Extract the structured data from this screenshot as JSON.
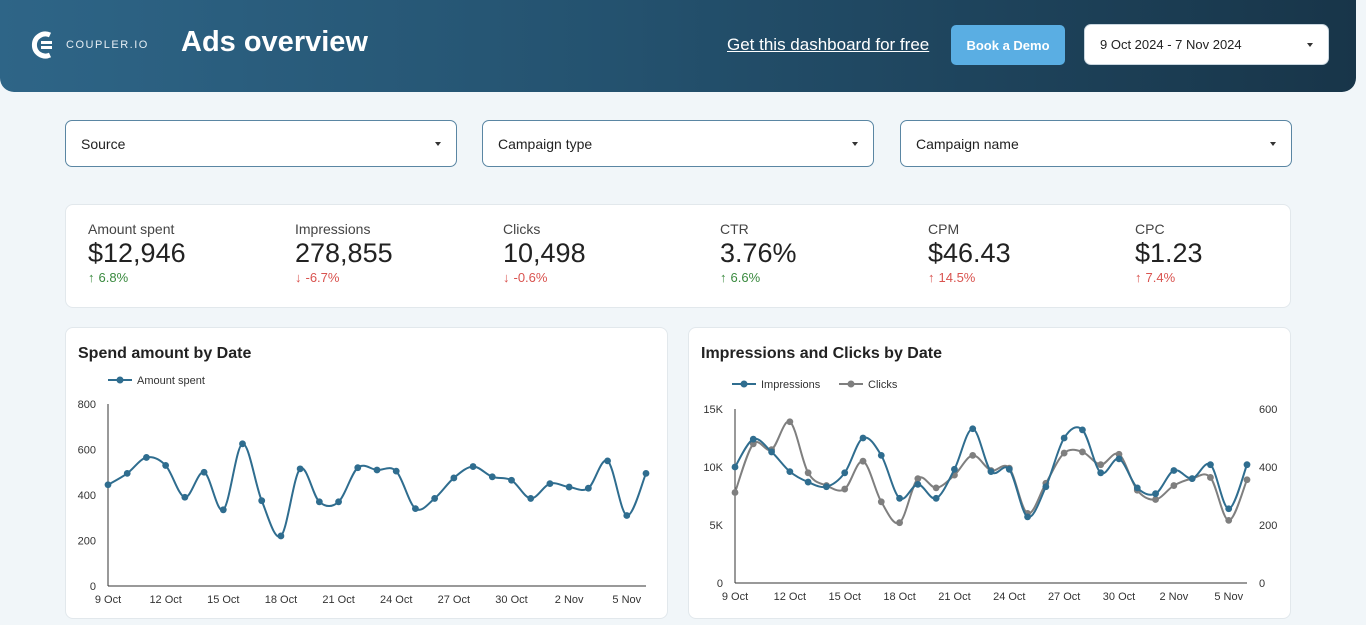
{
  "header": {
    "logo_text": "COUPLER.IO",
    "title": "Ads overview",
    "free_link": "Get this dashboard for free",
    "demo_button": "Book a Demo",
    "date_range": "9 Oct 2024 - 7 Nov 2024"
  },
  "filters": [
    {
      "label": "Source"
    },
    {
      "label": "Campaign type"
    },
    {
      "label": "Campaign name"
    }
  ],
  "kpis": [
    {
      "label": "Amount spent",
      "value": "$12,946",
      "delta": "6.8%",
      "direction": "up",
      "color": "#3a8a3f"
    },
    {
      "label": "Impressions",
      "value": "278,855",
      "delta": "-6.7%",
      "direction": "down",
      "color": "#d9534f"
    },
    {
      "label": "Clicks",
      "value": "10,498",
      "delta": "-0.6%",
      "direction": "down",
      "color": "#d9534f"
    },
    {
      "label": "CTR",
      "value": "3.76%",
      "delta": "6.6%",
      "direction": "up",
      "color": "#3a8a3f"
    },
    {
      "label": "CPM",
      "value": "$46.43",
      "delta": "14.5%",
      "direction": "up",
      "color": "#d9534f"
    },
    {
      "label": "CPC",
      "value": "$1.23",
      "delta": "7.4%",
      "direction": "up",
      "color": "#d9534f"
    }
  ],
  "colors": {
    "series_blue": "#2f6d8f",
    "series_gray": "#7f7f7f",
    "primary_button": "#5aaee3"
  },
  "chart_data": [
    {
      "type": "line",
      "title": "Spend amount by Date",
      "x_tick_labels": [
        "9 Oct",
        "12 Oct",
        "15 Oct",
        "18 Oct",
        "21 Oct",
        "24 Oct",
        "27 Oct",
        "30 Oct",
        "2 Nov",
        "5 Nov"
      ],
      "ylim": [
        0,
        800
      ],
      "y_ticks": [
        0,
        200,
        400,
        600,
        800
      ],
      "legend_position": "top-left",
      "series": [
        {
          "name": "Amount spent",
          "values": [
            445,
            495,
            565,
            530,
            390,
            500,
            335,
            625,
            375,
            220,
            515,
            370,
            370,
            520,
            510,
            505,
            340,
            385,
            475,
            525,
            480,
            465,
            385,
            450,
            435,
            430,
            550,
            310,
            495
          ]
        }
      ]
    },
    {
      "type": "line",
      "title": "Impressions and Clicks by Date",
      "x_tick_labels": [
        "9 Oct",
        "12 Oct",
        "15 Oct",
        "18 Oct",
        "21 Oct",
        "24 Oct",
        "27 Oct",
        "30 Oct",
        "2 Nov",
        "5 Nov"
      ],
      "y_left_ticks": [
        "0",
        "5K",
        "10K",
        "15K"
      ],
      "y_left_lim": [
        0,
        15000
      ],
      "y_right_ticks": [
        "0",
        "200",
        "400",
        "600"
      ],
      "y_right_lim": [
        0,
        600
      ],
      "legend_position": "top-left",
      "series": [
        {
          "name": "Impressions",
          "axis": "left",
          "values": [
            10000,
            12400,
            11300,
            9600,
            8700,
            8300,
            9500,
            12500,
            11000,
            7300,
            8500,
            7300,
            9800,
            13300,
            9600,
            9800,
            5700,
            8300,
            12500,
            13200,
            9500,
            10700,
            8200,
            7700,
            9700,
            9000,
            10200,
            6400,
            10200
          ]
        },
        {
          "name": "Clicks",
          "axis": "left",
          "values": [
            7800,
            12000,
            11500,
            13900,
            9500,
            8400,
            8100,
            10500,
            7000,
            5200,
            9000,
            8200,
            9300,
            11000,
            9700,
            9900,
            6000,
            8600,
            11200,
            11300,
            10200,
            11100,
            8000,
            7200,
            8400,
            9000,
            9100,
            5400,
            8900
          ]
        }
      ]
    }
  ]
}
